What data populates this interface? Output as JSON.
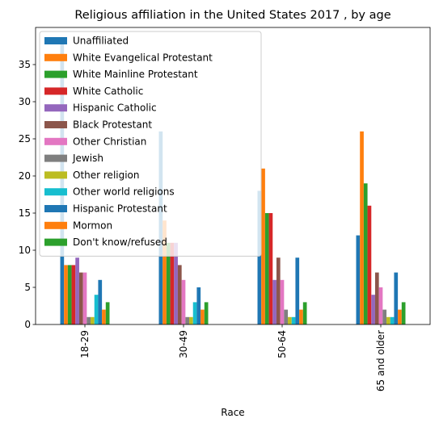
{
  "chart_data": {
    "type": "bar",
    "title": "Religious affiliation in the United States 2017 , by age",
    "xlabel": "Race",
    "ylabel": "",
    "categories": [
      "18-29",
      "30-49",
      "50-64",
      "65 and older"
    ],
    "ylim": [
      0,
      40
    ],
    "yticks": [
      0,
      5,
      10,
      15,
      20,
      25,
      30,
      35
    ],
    "grid": false,
    "legend_position": "top-left",
    "series": [
      {
        "name": "Unaffiliated",
        "color": "#1f77b4",
        "values": [
          38,
          26,
          18,
          12
        ]
      },
      {
        "name": "White Evangelical Protestant",
        "color": "#ff7f0e",
        "values": [
          8,
          14,
          21,
          26
        ]
      },
      {
        "name": "White Mainline Protestant",
        "color": "#2ca02c",
        "values": [
          8,
          11,
          15,
          19
        ]
      },
      {
        "name": "White Catholic",
        "color": "#d62728",
        "values": [
          8,
          11,
          15,
          16
        ]
      },
      {
        "name": "Hispanic Catholic",
        "color": "#9467bd",
        "values": [
          9,
          11,
          6,
          4
        ]
      },
      {
        "name": "Black Protestant",
        "color": "#8c564b",
        "values": [
          7,
          8,
          9,
          7
        ]
      },
      {
        "name": "Other Christian",
        "color": "#e377c2",
        "values": [
          7,
          6,
          6,
          5
        ]
      },
      {
        "name": "Jewish",
        "color": "#7f7f7f",
        "values": [
          1,
          1,
          2,
          2
        ]
      },
      {
        "name": "Other religion",
        "color": "#bcbd22",
        "values": [
          1,
          1,
          1,
          1
        ]
      },
      {
        "name": "Other world religions",
        "color": "#17becf",
        "values": [
          4,
          3,
          1,
          1
        ]
      },
      {
        "name": "Hispanic Protestant",
        "color": "#1f77b4",
        "values": [
          6,
          5,
          9,
          7
        ]
      },
      {
        "name": "Mormon",
        "color": "#ff7f0e",
        "values": [
          2,
          2,
          2,
          2
        ]
      },
      {
        "name": "Don't know/refused",
        "color": "#2ca02c",
        "values": [
          3,
          3,
          3,
          3
        ]
      }
    ]
  }
}
